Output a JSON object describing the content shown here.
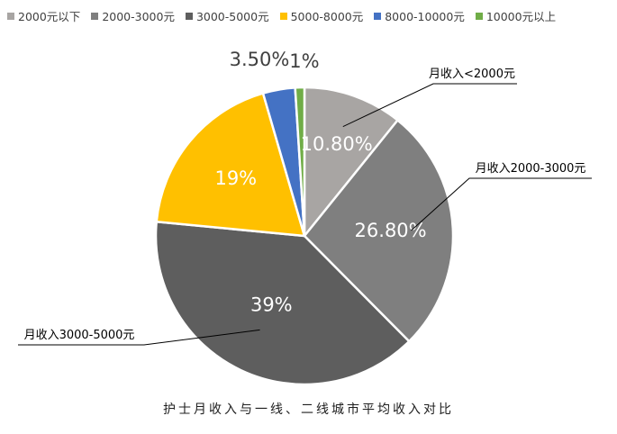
{
  "chart_data": {
    "type": "pie",
    "title": "",
    "caption": "护士月收入与一线、二线城市平均收入对比",
    "legend_position": "top",
    "slices": [
      {
        "label": "2000元以下",
        "value": 10.8,
        "value_label": "10.80%",
        "color": "#a8a5a3"
      },
      {
        "label": "2000-3000元",
        "value": 26.8,
        "value_label": "26.80%",
        "color": "#7f7f7f"
      },
      {
        "label": "3000-5000元",
        "value": 39,
        "value_label": "39%",
        "color": "#5e5e5e"
      },
      {
        "label": "5000-8000元",
        "value": 19,
        "value_label": "19%",
        "color": "#ffc000"
      },
      {
        "label": "8000-10000元",
        "value": 3.5,
        "value_label": "3.50%",
        "color": "#4472c4"
      },
      {
        "label": "10000元以上",
        "value": 1,
        "value_label": "1%",
        "color": "#70ad47"
      }
    ],
    "callouts": [
      {
        "slice": 0,
        "text": "月收入<2000元"
      },
      {
        "slice": 1,
        "text": "月收入2000-3000元"
      },
      {
        "slice": 2,
        "text": "月收入3000-5000元"
      }
    ]
  }
}
